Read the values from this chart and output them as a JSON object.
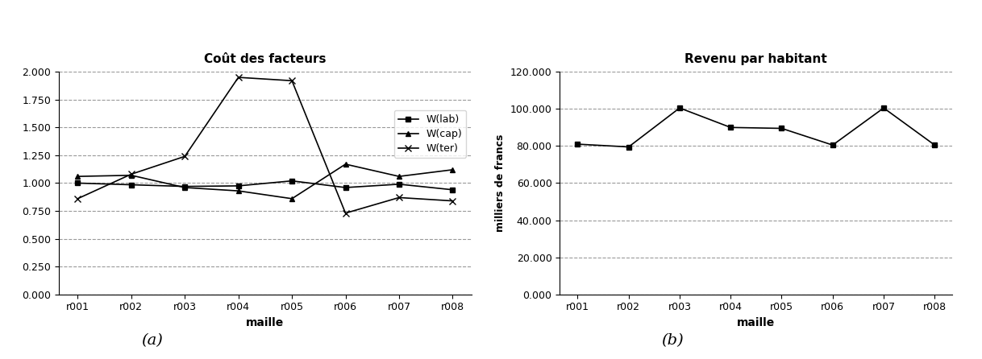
{
  "categories": [
    "r001",
    "r002",
    "r003",
    "r004",
    "r005",
    "r006",
    "r007",
    "r008"
  ],
  "wlab": [
    1.0,
    0.985,
    0.97,
    0.975,
    1.02,
    0.96,
    0.99,
    0.94
  ],
  "wcap": [
    1.06,
    1.07,
    0.96,
    0.93,
    0.86,
    1.17,
    1.06,
    1.12
  ],
  "wter": [
    0.86,
    1.08,
    1.24,
    1.95,
    1.92,
    0.73,
    0.87,
    0.84
  ],
  "revenu": [
    81000,
    79500,
    100500,
    90000,
    89500,
    80500,
    100500,
    80500
  ],
  "title_left": "Coût des facteurs",
  "title_right": "Revenu par habitant",
  "xlabel": "maille",
  "ylabel_left": "",
  "ylabel_right": "milliers de francs",
  "legend_labels": [
    "W(lab)",
    "W(cap)",
    "W(ter)"
  ],
  "ylim_left": [
    0.0,
    2.0
  ],
  "yticks_left": [
    0.0,
    0.25,
    0.5,
    0.75,
    1.0,
    1.25,
    1.5,
    1.75,
    2.0
  ],
  "ylim_right": [
    0,
    120000
  ],
  "yticks_right": [
    0,
    20000,
    40000,
    60000,
    80000,
    100000,
    120000
  ],
  "caption_a": "(a)",
  "caption_b": "(b)",
  "line_color": "#000000",
  "bg_color": "#ffffff",
  "grid_color": "#999999"
}
